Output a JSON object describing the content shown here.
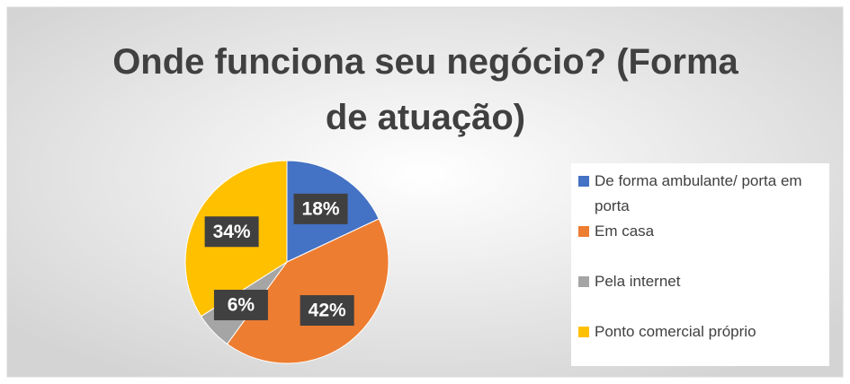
{
  "chart_data": {
    "type": "pie",
    "title": "Onde funciona seu negócio? (Forma de atuação)",
    "categories": [
      "De forma ambulante/ porta em porta",
      "Em casa",
      "Pela internet",
      "Ponto comercial próprio"
    ],
    "values": [
      18,
      42,
      6,
      34
    ],
    "value_labels": [
      "18%",
      "42%",
      "6%",
      "34%"
    ],
    "colors": [
      "#4472c4",
      "#ed7d31",
      "#a5a5a5",
      "#ffc000"
    ],
    "legend": "right"
  }
}
